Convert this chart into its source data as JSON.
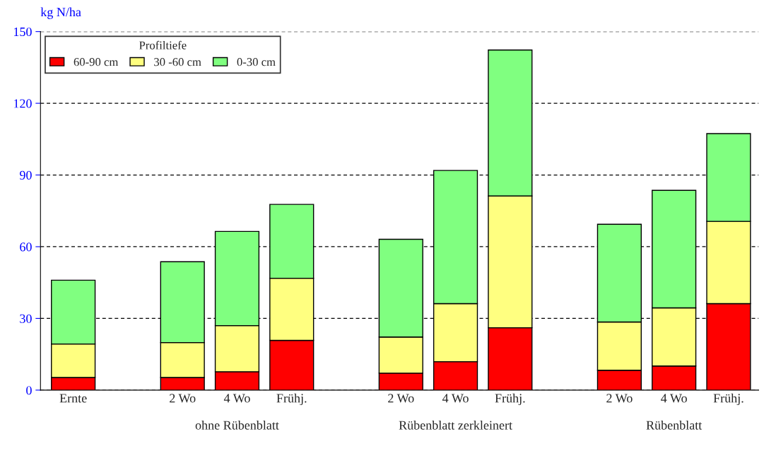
{
  "chart_data": {
    "type": "bar",
    "stacked": true,
    "ylabel": "kg N/ha",
    "legend_title": "Profiltiefe",
    "legend": "top left",
    "categories": [
      "Ernte",
      null,
      "2 Wo",
      "4 Wo",
      "Frühj.",
      null,
      "2 Wo",
      "4 Wo",
      "Frühj.",
      null,
      "2 Wo",
      "4 Wo",
      "Frühj."
    ],
    "series": [
      {
        "name": "60-90 cm",
        "color": "#ff0000",
        "values": [
          5.3,
          null,
          5.3,
          7.7,
          20.8,
          null,
          7.1,
          11.9,
          26.1,
          null,
          8.3,
          10.1,
          36.2
        ]
      },
      {
        "name": "30 -60 cm",
        "color": "#ffff80",
        "values": [
          14.0,
          null,
          14.6,
          19.3,
          26.0,
          null,
          15.1,
          24.3,
          55.1,
          null,
          20.2,
          24.3,
          34.4
        ]
      },
      {
        "name": "0-30 cm",
        "color": "#80ff80",
        "values": [
          26.7,
          null,
          33.8,
          39.4,
          30.9,
          null,
          40.9,
          55.7,
          61.1,
          null,
          40.9,
          49.2,
          36.7
        ]
      }
    ],
    "annotations": [
      "ohne Rübenblatt",
      "Rübenblatt zerkleinert",
      "Rübenblatt"
    ],
    "ylim": [
      0,
      150
    ],
    "yticks": [
      0,
      30,
      60,
      90,
      120,
      150
    ],
    "grid": "y"
  }
}
